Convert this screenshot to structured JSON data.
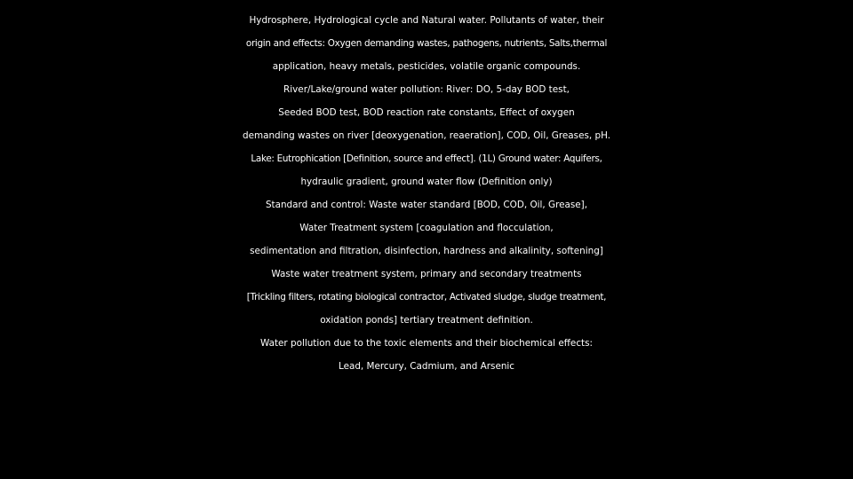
{
  "slide": {
    "lines": [
      "Hydrosphere, Hydrological cycle and Natural water. Pollutants of water, their",
      "origin and effects: Oxygen demanding wastes, pathogens, nutrients, Salts,thermal",
      "application, heavy metals, pesticides, volatile organic compounds.",
      "River/Lake/ground water pollution: River: DO, 5-day BOD test,",
      "Seeded BOD test, BOD reaction rate constants, Effect of oxygen",
      "demanding wastes on river [deoxygenation, reaeration], COD, Oil, Greases, pH.",
      "Lake: Eutrophication [Definition, source and effect]. (1L) Ground water: Aquifers,",
      "hydraulic gradient, ground water flow (Definition only)",
      "Standard and control: Waste water standard [BOD, COD, Oil, Grease],",
      "Water Treatment system [coagulation and flocculation,",
      "sedimentation and filtration, disinfection, hardness and alkalinity, softening]",
      "Waste water treatment system, primary and secondary treatments",
      "[Trickling filters, rotating biological contractor, Activated sludge, sludge treatment,",
      "oxidation ponds] tertiary treatment definition.",
      "Water pollution due to the toxic elements and their biochemical effects:",
      "Lead, Mercury, Cadmium, and Arsenic"
    ],
    "colors": {
      "background": "#000000",
      "text": "#ffffff"
    }
  }
}
